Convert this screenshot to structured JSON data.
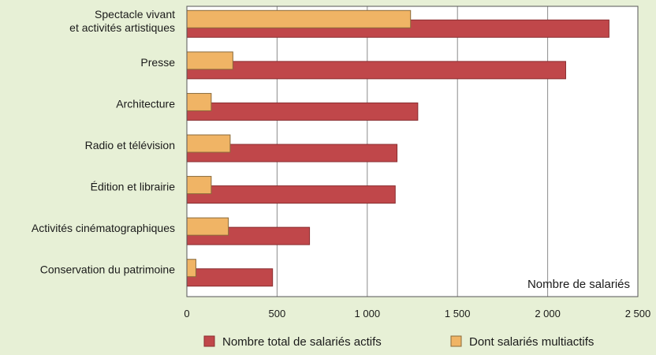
{
  "chart_data": {
    "type": "bar",
    "orientation": "horizontal",
    "categories": [
      [
        "Spectacle vivant",
        "et activités artistiques"
      ],
      [
        "Presse"
      ],
      [
        "Architecture"
      ],
      [
        "Radio et télévision"
      ],
      [
        "Édition et librairie"
      ],
      [
        "Activités cinématographiques"
      ],
      [
        "Conservation du patrimoine"
      ]
    ],
    "series": [
      {
        "name": "Nombre total de salariés actifs",
        "color": "#c0474a",
        "values": [
          2340,
          2100,
          1280,
          1165,
          1155,
          680,
          475
        ]
      },
      {
        "name": "Dont salariés multiactifs",
        "color": "#f0b465",
        "values": [
          1240,
          255,
          135,
          240,
          135,
          230,
          50
        ]
      }
    ],
    "xlabel": "Nombre de salariés",
    "xlim": [
      0,
      2500
    ],
    "xticks": [
      0,
      500,
      1000,
      1500,
      2000,
      2500
    ],
    "xtick_labels": [
      "0",
      "500",
      "1 000",
      "1 500",
      "2 000",
      "2 500"
    ],
    "grid": "vertical",
    "legend_position": "bottom"
  }
}
